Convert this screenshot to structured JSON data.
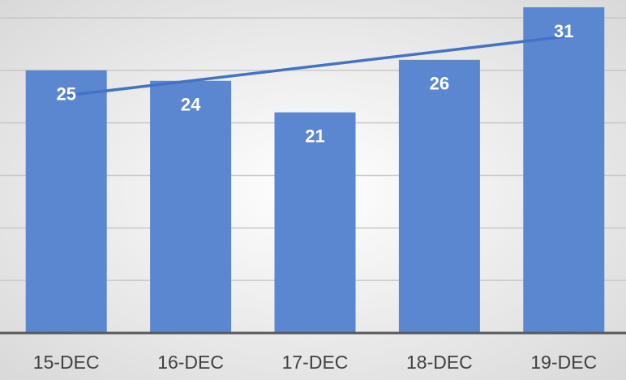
{
  "chart_data": {
    "type": "bar",
    "categories": [
      "15-DEC",
      "16-DEC",
      "17-DEC",
      "18-DEC",
      "19-DEC"
    ],
    "values": [
      25,
      24,
      21,
      26,
      31
    ],
    "color": "#5b87d0",
    "trendline": "linear",
    "trendline_color": "#4472c4",
    "ylim": [
      0,
      31.5
    ],
    "yticks": [
      0,
      5,
      10,
      15,
      20,
      25,
      30
    ],
    "grid": true
  }
}
